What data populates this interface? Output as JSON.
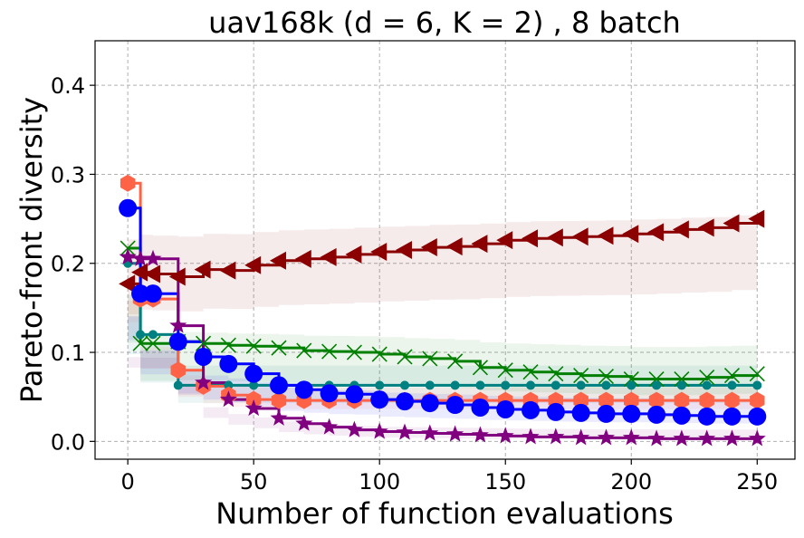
{
  "chart_data": {
    "type": "line",
    "title": "uav168k (d = 6, K = 2) , 8 batch",
    "xlabel": "Number of function evaluations",
    "ylabel": "Pareto-front diversity",
    "xlim": [
      -13,
      265
    ],
    "ylim": [
      -0.02,
      0.45
    ],
    "xticks": [
      0,
      50,
      100,
      150,
      200,
      250
    ],
    "yticks": [
      0.0,
      0.1,
      0.2,
      0.3,
      0.4
    ],
    "ytick_labels": [
      "0.0",
      "0.1",
      "0.2",
      "0.3",
      "0.4"
    ],
    "grid": true,
    "legend": "none",
    "x": [
      0,
      5,
      10,
      20,
      30,
      40,
      50,
      60,
      70,
      80,
      90,
      100,
      110,
      120,
      130,
      140,
      150,
      160,
      170,
      180,
      190,
      200,
      210,
      220,
      230,
      240,
      250
    ],
    "series": [
      {
        "color": "#8b0000",
        "marker": "triangle-left",
        "values": [
          0.177,
          0.19,
          0.188,
          0.185,
          0.193,
          0.192,
          0.198,
          0.203,
          0.205,
          0.207,
          0.21,
          0.213,
          0.215,
          0.218,
          0.219,
          0.222,
          0.226,
          0.228,
          0.229,
          0.23,
          0.231,
          0.233,
          0.235,
          0.238,
          0.24,
          0.245,
          0.25
        ],
        "band": [
          0.12,
          0.26
        ]
      },
      {
        "color": "#008000",
        "marker": "x",
        "values": [
          0.217,
          0.11,
          0.11,
          0.112,
          0.11,
          0.108,
          0.107,
          0.105,
          0.102,
          0.101,
          0.1,
          0.098,
          0.095,
          0.093,
          0.09,
          0.083,
          0.08,
          0.078,
          0.076,
          0.074,
          0.073,
          0.07,
          0.07,
          0.07,
          0.072,
          0.074,
          0.076
        ],
        "band": [
          0.04,
          0.13
        ]
      },
      {
        "color": "#008080",
        "marker": "circle-small",
        "values": [
          0.2,
          0.12,
          0.12,
          0.063,
          0.063,
          0.063,
          0.063,
          0.063,
          0.063,
          0.063,
          0.063,
          0.063,
          0.063,
          0.063,
          0.063,
          0.063,
          0.063,
          0.063,
          0.063,
          0.063,
          0.063,
          0.063,
          0.063,
          0.063,
          0.063,
          0.063,
          0.063
        ],
        "band": [
          0.03,
          0.1
        ]
      },
      {
        "color": "#ff6347",
        "marker": "hexagon",
        "values": [
          0.29,
          0.16,
          0.16,
          0.08,
          0.062,
          0.052,
          0.047,
          0.046,
          0.046,
          0.046,
          0.046,
          0.046,
          0.046,
          0.046,
          0.046,
          0.046,
          0.046,
          0.046,
          0.046,
          0.046,
          0.046,
          0.046,
          0.046,
          0.046,
          0.046,
          0.046,
          0.046
        ],
        "band": [
          0.03,
          0.07
        ]
      },
      {
        "color": "#0000ff",
        "marker": "circle",
        "values": [
          0.262,
          0.166,
          0.166,
          0.112,
          0.095,
          0.087,
          0.076,
          0.063,
          0.058,
          0.054,
          0.053,
          0.047,
          0.045,
          0.043,
          0.041,
          0.038,
          0.036,
          0.035,
          0.033,
          0.032,
          0.031,
          0.031,
          0.03,
          0.029,
          0.028,
          0.028,
          0.028
        ],
        "band": [
          0.015,
          0.06
        ]
      },
      {
        "color": "#800080",
        "marker": "star",
        "values": [
          0.207,
          0.205,
          0.205,
          0.13,
          0.066,
          0.047,
          0.037,
          0.026,
          0.02,
          0.016,
          0.013,
          0.011,
          0.01,
          0.009,
          0.008,
          0.007,
          0.006,
          0.005,
          0.005,
          0.004,
          0.004,
          0.004,
          0.003,
          0.003,
          0.003,
          0.003,
          0.003
        ],
        "band": [
          0.0,
          0.02
        ]
      }
    ]
  }
}
